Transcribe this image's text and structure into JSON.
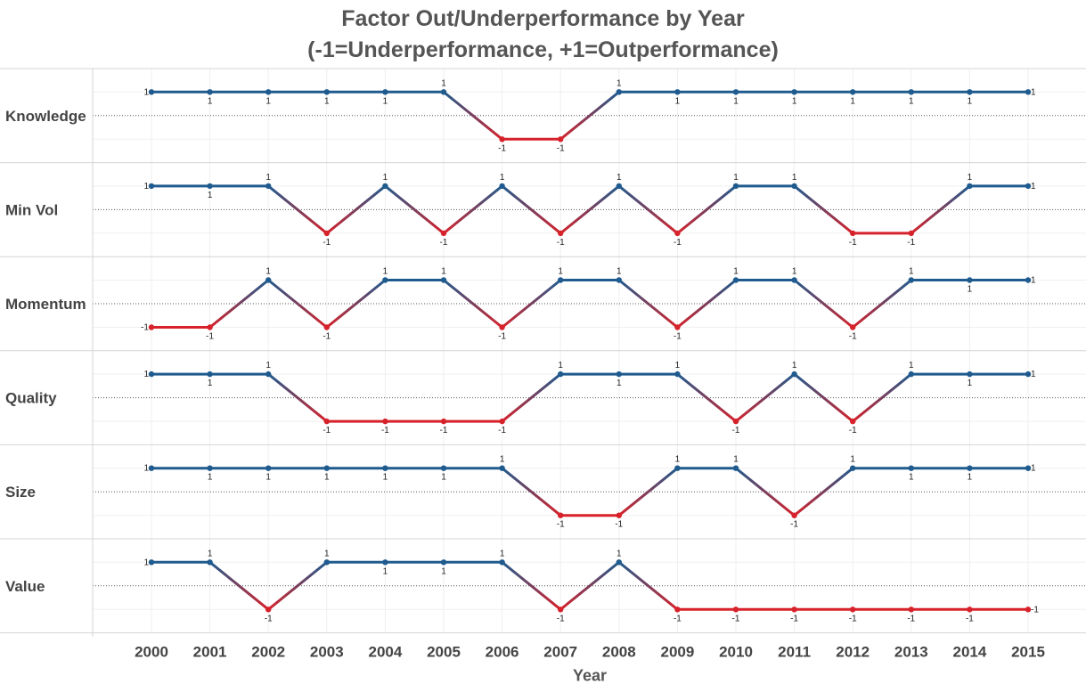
{
  "chart_data": {
    "type": "line",
    "title_lines": [
      "Factor Out/Underperformance by Year",
      "(-1=Underperformance, +1=Outperformance)"
    ],
    "xlabel": "Year",
    "ylabel": "",
    "x": [
      2000,
      2001,
      2002,
      2003,
      2004,
      2005,
      2006,
      2007,
      2008,
      2009,
      2010,
      2011,
      2012,
      2013,
      2014,
      2015
    ],
    "ylim": [
      -1,
      1
    ],
    "grid": true,
    "colors": {
      "positive": "#1f5b8e",
      "negative": "#d7222b"
    },
    "series": [
      {
        "name": "Knowledge",
        "values": [
          1,
          1,
          1,
          1,
          1,
          1,
          -1,
          -1,
          1,
          1,
          1,
          1,
          1,
          1,
          1,
          1
        ]
      },
      {
        "name": "Min Vol",
        "values": [
          1,
          1,
          1,
          -1,
          1,
          -1,
          1,
          -1,
          1,
          -1,
          1,
          1,
          -1,
          -1,
          1,
          1
        ]
      },
      {
        "name": "Momentum",
        "values": [
          -1,
          -1,
          1,
          -1,
          1,
          1,
          -1,
          1,
          1,
          -1,
          1,
          1,
          -1,
          1,
          1,
          1
        ]
      },
      {
        "name": "Quality",
        "values": [
          1,
          1,
          1,
          -1,
          -1,
          -1,
          -1,
          1,
          1,
          1,
          -1,
          1,
          -1,
          1,
          1,
          1
        ]
      },
      {
        "name": "Size",
        "values": [
          1,
          1,
          1,
          1,
          1,
          1,
          1,
          -1,
          -1,
          1,
          1,
          -1,
          1,
          1,
          1,
          1
        ]
      },
      {
        "name": "Value",
        "values": [
          1,
          1,
          -1,
          1,
          1,
          1,
          1,
          -1,
          1,
          -1,
          -1,
          -1,
          -1,
          -1,
          -1,
          -1
        ]
      }
    ]
  }
}
